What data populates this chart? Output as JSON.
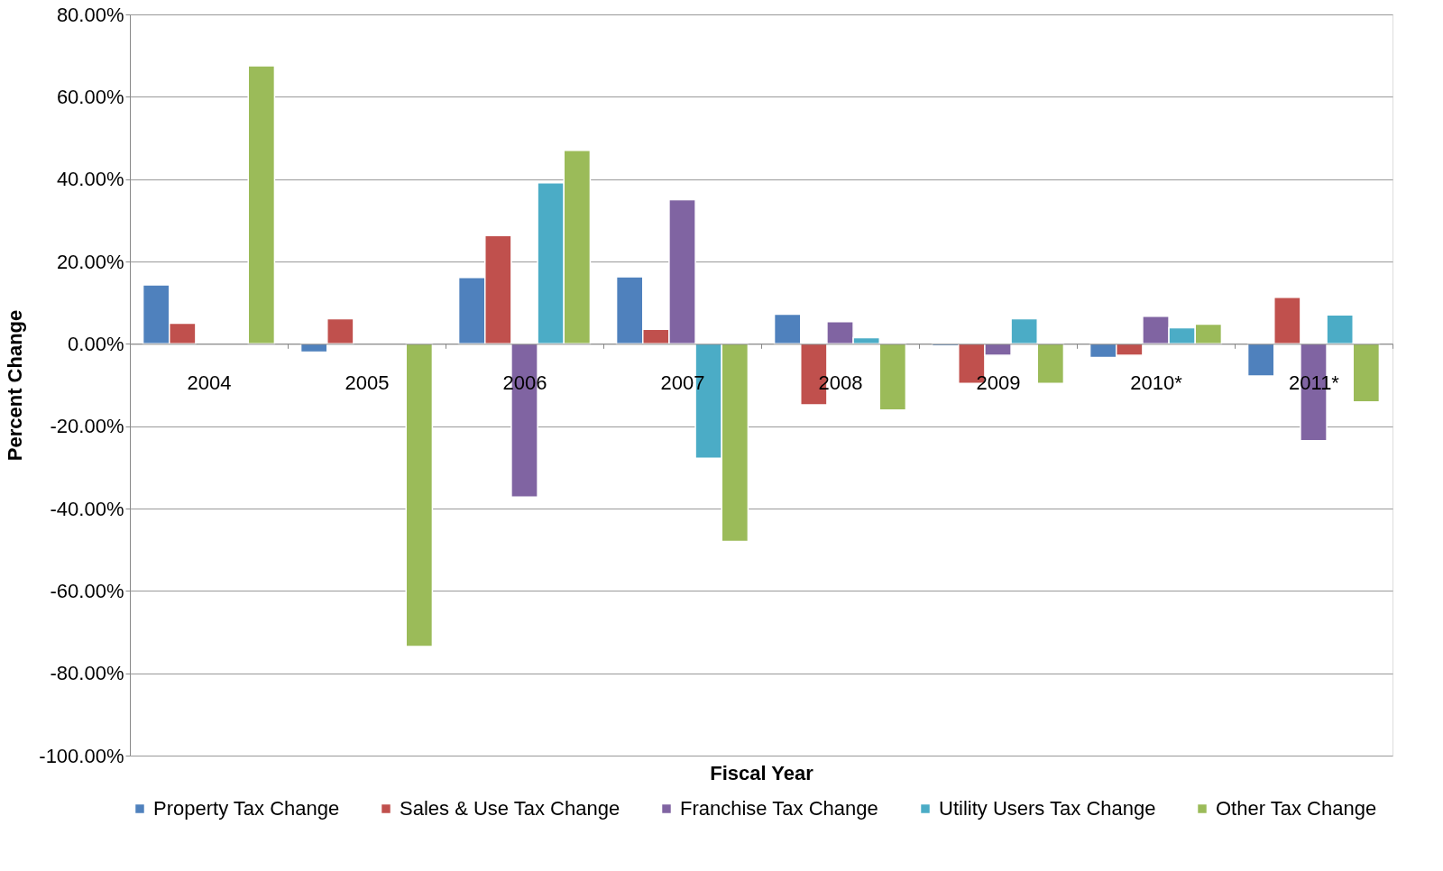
{
  "chart_data": {
    "type": "bar",
    "xlabel": "Fiscal Year",
    "ylabel": "Percent Change",
    "categories": [
      "2004",
      "2005",
      "2006",
      "2007",
      "2008",
      "2009",
      "2010*",
      "2011*"
    ],
    "series": [
      {
        "name": "Property Tax Change",
        "color": "#4f81bd",
        "values": [
          14.3,
          -2.0,
          16.1,
          16.3,
          7.2,
          -0.5,
          -3.3,
          -7.8
        ]
      },
      {
        "name": "Sales & Use Tax Change",
        "color": "#c0504d",
        "values": [
          5.0,
          6.1,
          26.3,
          3.5,
          -14.8,
          -9.6,
          -2.8,
          11.3
        ]
      },
      {
        "name": "Franchise Tax Change",
        "color": "#8064a2",
        "values": [
          null,
          null,
          -37.2,
          35.0,
          5.4,
          -2.8,
          6.7,
          -23.5
        ]
      },
      {
        "name": "Utility Users Tax Change",
        "color": "#4bacc6",
        "values": [
          null,
          null,
          39.1,
          -27.8,
          1.5,
          6.1,
          3.9,
          7.0
        ]
      },
      {
        "name": "Other Tax Change",
        "color": "#9bbb59",
        "values": [
          67.5,
          -73.5,
          47.0,
          -48.0,
          -16.1,
          -9.6,
          4.8,
          -14.1
        ]
      }
    ],
    "ylim": [
      -100,
      80
    ],
    "yticks": [
      {
        "value": -100,
        "label": "-100.00%"
      },
      {
        "value": -80,
        "label": "-80.00%"
      },
      {
        "value": -60,
        "label": "-60.00%"
      },
      {
        "value": -40,
        "label": "-40.00%"
      },
      {
        "value": -20,
        "label": "-20.00%"
      },
      {
        "value": 0,
        "label": "0.00%"
      },
      {
        "value": 20,
        "label": "20.00%"
      },
      {
        "value": 40,
        "label": "40.00%"
      },
      {
        "value": 60,
        "label": "60.00%"
      },
      {
        "value": 80,
        "label": "80.00%"
      }
    ],
    "grid": "y",
    "legend": "bottom"
  }
}
